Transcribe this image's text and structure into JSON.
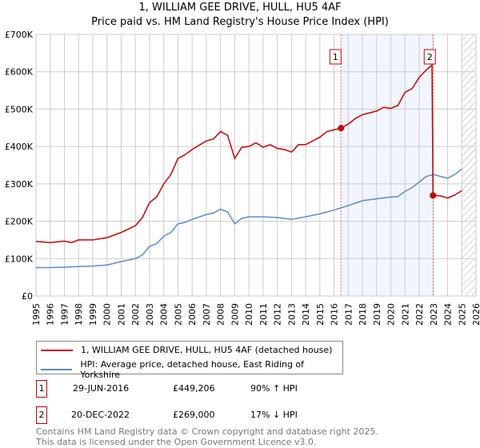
{
  "chart_data": {
    "type": "line",
    "title": "1, WILLIAM GEE DRIVE, HULL, HU5 4AF",
    "subtitle": "Price paid vs. HM Land Registry's House Price Index (HPI)",
    "xlim": [
      1995,
      2026
    ],
    "ylim": [
      0,
      700000
    ],
    "x_ticks": [
      "1995",
      "1996",
      "1997",
      "1998",
      "1999",
      "2000",
      "2001",
      "2002",
      "2003",
      "2004",
      "2005",
      "2006",
      "2007",
      "2008",
      "2009",
      "2010",
      "2011",
      "2012",
      "2013",
      "2014",
      "2015",
      "2016",
      "2017",
      "2018",
      "2019",
      "2020",
      "2021",
      "2022",
      "2023",
      "2024",
      "2025",
      "2026"
    ],
    "y_ticks": [
      "£0",
      "£100K",
      "£200K",
      "£300K",
      "£400K",
      "£500K",
      "£600K",
      "£700K"
    ],
    "grid": true,
    "series": [
      {
        "name": "1, WILLIAM GEE DRIVE, HULL, HU5 4AF (detached house)",
        "color": "#cc0000",
        "points": [
          [
            1995,
            146000
          ],
          [
            1996,
            143000
          ],
          [
            1997,
            147000
          ],
          [
            1997.5,
            143000
          ],
          [
            1998,
            150000
          ],
          [
            1999,
            150000
          ],
          [
            2000,
            156000
          ],
          [
            2001,
            170000
          ],
          [
            2002,
            188000
          ],
          [
            2002.5,
            210000
          ],
          [
            2003,
            250000
          ],
          [
            2003.5,
            265000
          ],
          [
            2004,
            300000
          ],
          [
            2004.5,
            325000
          ],
          [
            2005,
            368000
          ],
          [
            2005.5,
            378000
          ],
          [
            2006,
            392000
          ],
          [
            2007,
            415000
          ],
          [
            2007.5,
            420000
          ],
          [
            2008,
            440000
          ],
          [
            2008.5,
            430000
          ],
          [
            2009,
            368000
          ],
          [
            2009.5,
            398000
          ],
          [
            2010,
            400000
          ],
          [
            2010.5,
            410000
          ],
          [
            2011,
            398000
          ],
          [
            2011.5,
            405000
          ],
          [
            2012,
            395000
          ],
          [
            2012.5,
            392000
          ],
          [
            2013,
            385000
          ],
          [
            2013.5,
            405000
          ],
          [
            2014,
            405000
          ],
          [
            2015,
            425000
          ],
          [
            2015.5,
            440000
          ],
          [
            2016.49,
            449206
          ],
          [
            2017,
            460000
          ],
          [
            2017.5,
            475000
          ],
          [
            2018,
            485000
          ],
          [
            2019,
            495000
          ],
          [
            2019.5,
            505000
          ],
          [
            2020,
            502000
          ],
          [
            2020.5,
            510000
          ],
          [
            2021,
            545000
          ],
          [
            2021.5,
            555000
          ],
          [
            2022,
            585000
          ],
          [
            2022.5,
            605000
          ],
          [
            2022.9,
            618000
          ],
          [
            2022.97,
            269000
          ],
          [
            2023.5,
            268000
          ],
          [
            2024,
            262000
          ],
          [
            2024.5,
            270000
          ],
          [
            2025,
            282000
          ]
        ]
      },
      {
        "name": "HPI: Average price, detached house, East Riding of Yorkshire",
        "color": "#5b8bd0",
        "points": [
          [
            1995,
            76000
          ],
          [
            1996,
            76000
          ],
          [
            1997,
            77000
          ],
          [
            1998,
            79000
          ],
          [
            1999,
            80000
          ],
          [
            2000,
            83000
          ],
          [
            2001,
            92000
          ],
          [
            2002,
            100000
          ],
          [
            2002.5,
            110000
          ],
          [
            2003,
            133000
          ],
          [
            2003.5,
            140000
          ],
          [
            2004,
            160000
          ],
          [
            2004.5,
            170000
          ],
          [
            2005,
            193000
          ],
          [
            2005.5,
            197000
          ],
          [
            2006,
            205000
          ],
          [
            2007,
            218000
          ],
          [
            2007.5,
            222000
          ],
          [
            2008,
            232000
          ],
          [
            2008.5,
            225000
          ],
          [
            2009,
            193000
          ],
          [
            2009.5,
            208000
          ],
          [
            2010,
            212000
          ],
          [
            2011,
            212000
          ],
          [
            2012,
            210000
          ],
          [
            2013,
            205000
          ],
          [
            2014,
            212000
          ],
          [
            2015,
            220000
          ],
          [
            2016,
            230000
          ],
          [
            2016.5,
            236000
          ],
          [
            2017,
            242000
          ],
          [
            2018,
            255000
          ],
          [
            2019,
            260000
          ],
          [
            2020,
            265000
          ],
          [
            2020.5,
            266000
          ],
          [
            2021,
            280000
          ],
          [
            2021.5,
            290000
          ],
          [
            2022,
            305000
          ],
          [
            2022.5,
            320000
          ],
          [
            2023,
            325000
          ],
          [
            2023.5,
            320000
          ],
          [
            2024,
            315000
          ],
          [
            2024.5,
            325000
          ],
          [
            2025,
            340000
          ]
        ]
      }
    ],
    "sales": [
      {
        "label": "1",
        "x": 2016.49,
        "y": 449206
      },
      {
        "label": "2",
        "x": 2022.97,
        "y": 269000
      }
    ],
    "highlight_range": [
      2016.49,
      2022.97
    ],
    "forecast_hatch_from": 2025,
    "legend_placement": "below"
  },
  "legend": {
    "red": "1, WILLIAM GEE DRIVE, HULL, HU5 4AF (detached house)",
    "blue": "HPI: Average price, detached house, East Riding of Yorkshire"
  },
  "annotations": [
    {
      "label": "1",
      "date": "29-JUN-2016",
      "price": "£449,206",
      "hpi": "90% ↑ HPI"
    },
    {
      "label": "2",
      "date": "20-DEC-2022",
      "price": "£269,000",
      "hpi": "17% ↓ HPI"
    }
  ],
  "footer": [
    "Contains HM Land Registry data © Crown copyright and database right 2025.",
    "This data is licensed under the Open Government Licence v3.0."
  ]
}
